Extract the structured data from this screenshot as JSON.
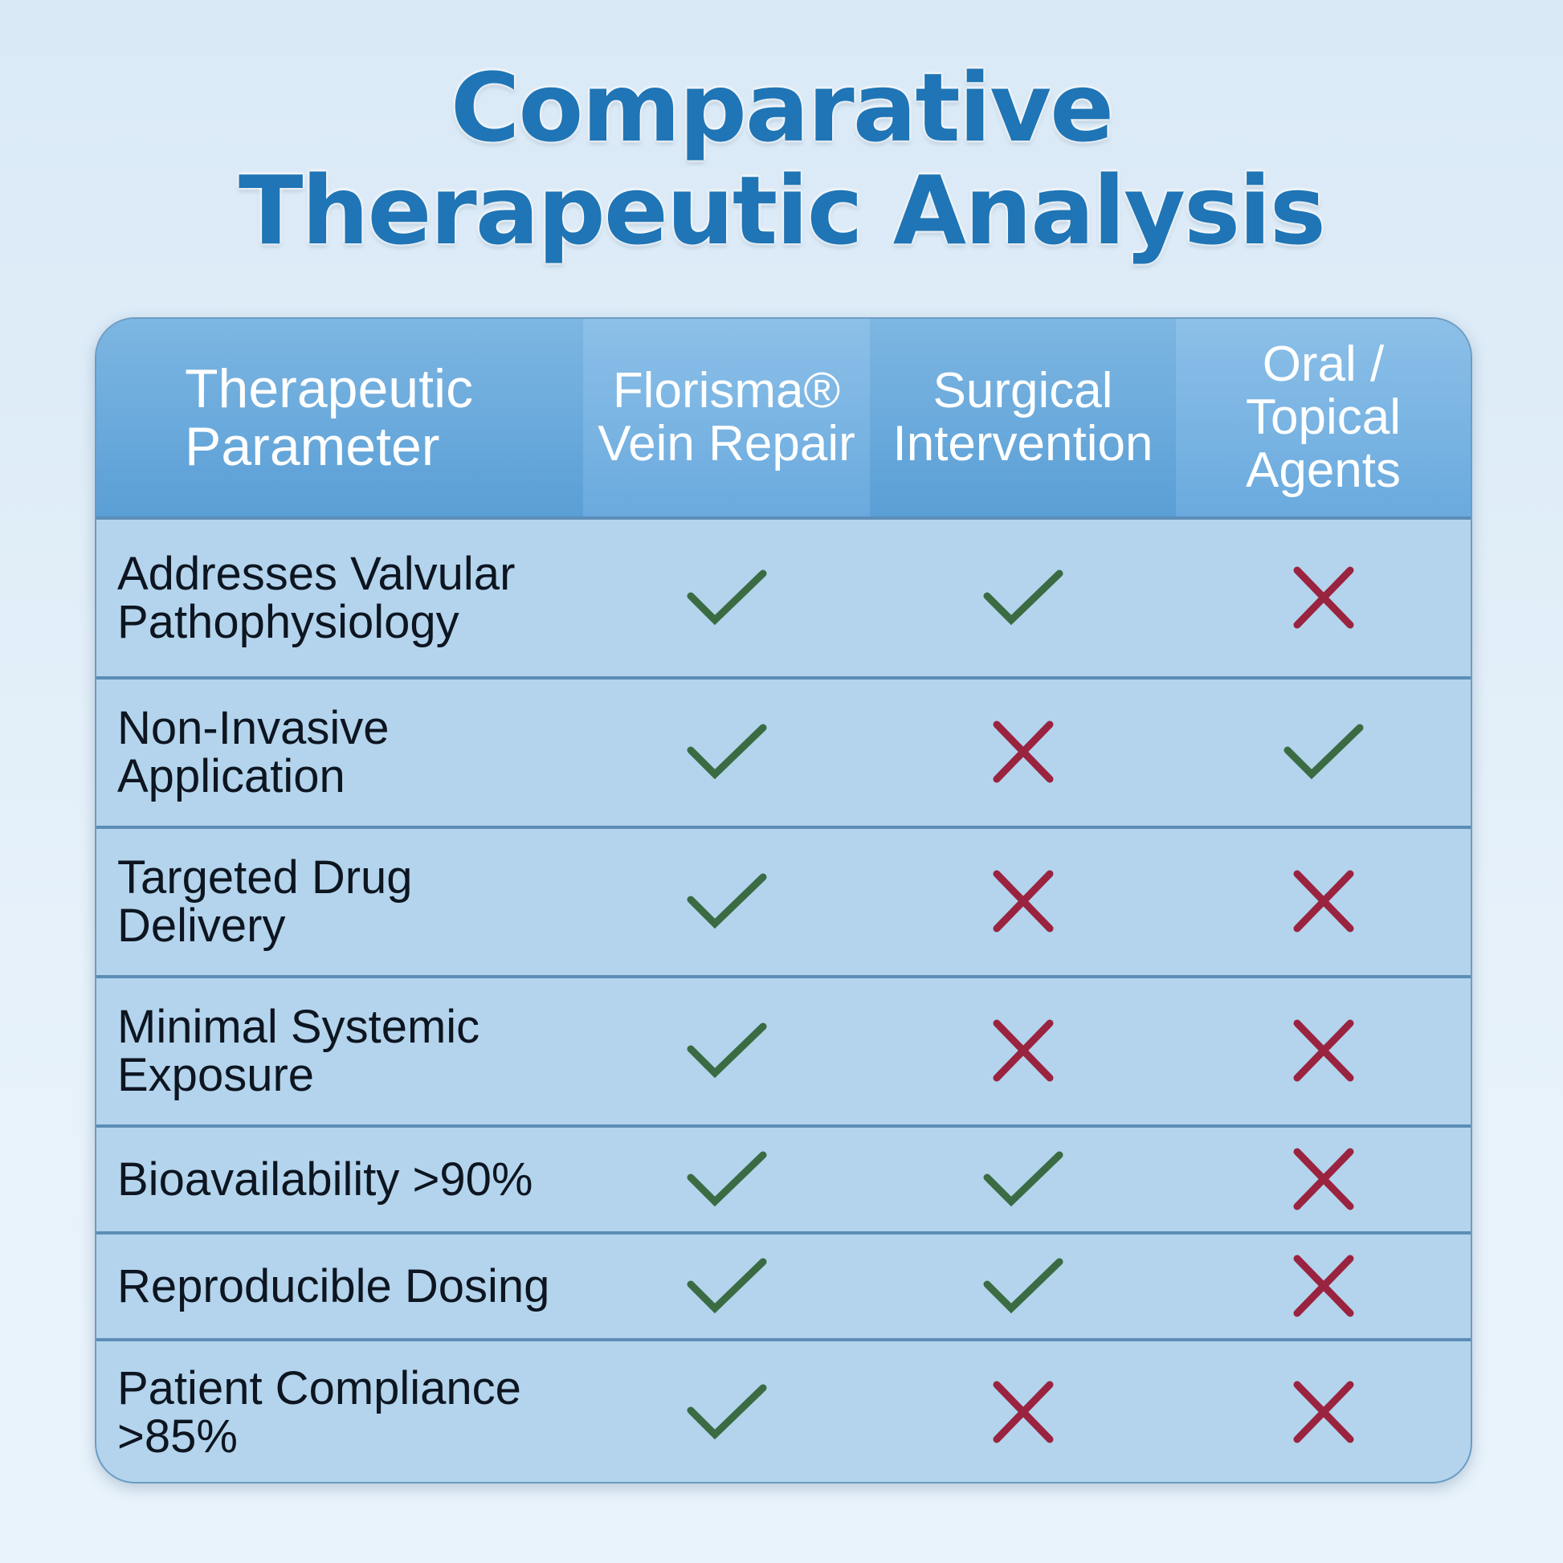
{
  "header": {
    "title": "Comparative Therapeutic Analysis"
  },
  "table": {
    "columns": [
      "Therapeutic Parameter",
      "Florisma® Vein Repair",
      "Surgical Intervention",
      "Oral / Topical Agents"
    ],
    "rows": [
      {
        "parameter": "Addresses Valvular Pathophysiology",
        "marks": [
          true,
          true,
          false
        ]
      },
      {
        "parameter": "Non-Invasive Application",
        "marks": [
          true,
          false,
          true
        ]
      },
      {
        "parameter": "Targeted Drug Delivery",
        "marks": [
          true,
          false,
          false
        ]
      },
      {
        "parameter": "Minimal Systemic Exposure",
        "marks": [
          true,
          false,
          false
        ]
      },
      {
        "parameter": "Bioavailability >90%",
        "marks": [
          true,
          true,
          false
        ]
      },
      {
        "parameter": "Reproducible Dosing",
        "marks": [
          true,
          true,
          false
        ]
      },
      {
        "parameter": "Patient Compliance >85%",
        "marks": [
          true,
          false,
          false
        ]
      }
    ]
  }
}
